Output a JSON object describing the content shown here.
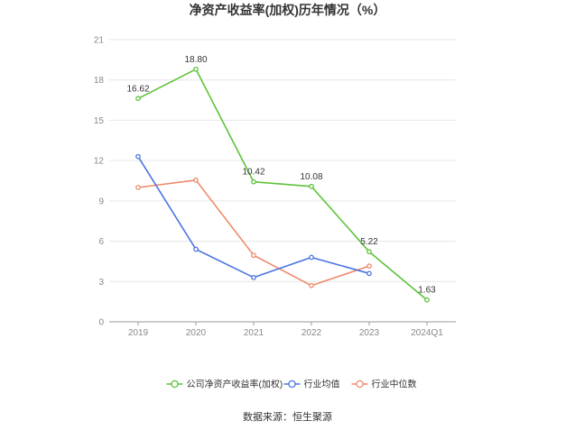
{
  "chart_data": {
    "type": "line",
    "title": "净资产收益率(加权)历年情况（%）",
    "categories": [
      "2019",
      "2020",
      "2021",
      "2022",
      "2023",
      "2024Q1"
    ],
    "ylim": [
      0,
      21
    ],
    "yticks": [
      0,
      3,
      6,
      9,
      12,
      15,
      18,
      21
    ],
    "grid": true,
    "legend_position": "bottom",
    "series": [
      {
        "name": "公司净资产收益率(加权)",
        "color": "#5cc43a",
        "values": [
          16.62,
          18.8,
          10.42,
          10.08,
          5.22,
          1.63
        ],
        "labels": [
          "16.62",
          "18.80",
          "10.42",
          "10.08",
          "5.22",
          "1.63"
        ]
      },
      {
        "name": "行业均值",
        "color": "#4a74e0",
        "values": [
          12.3,
          5.4,
          3.3,
          4.8,
          3.6,
          null
        ]
      },
      {
        "name": "行业中位数",
        "color": "#f0896a",
        "values": [
          10.0,
          10.55,
          4.95,
          2.7,
          4.15,
          null
        ]
      }
    ]
  },
  "source": "数据来源：恒生聚源"
}
